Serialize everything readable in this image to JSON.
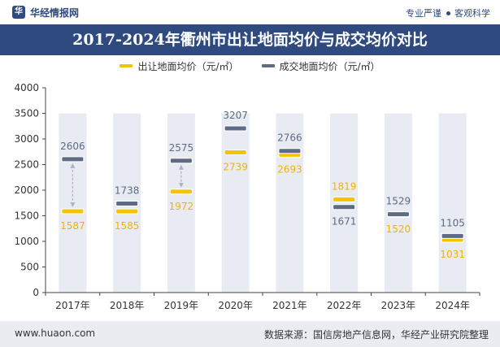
{
  "header": {
    "brand": "华经情报网",
    "brand_logo_char": "华",
    "tagline_left": "专业严谨",
    "tagline_right": "客观科学"
  },
  "footer": {
    "website": "www.huaon.com",
    "source": "数据来源：国信房地产信息网，华经产业研究院整理"
  },
  "colors": {
    "navy": "#2e4a7e",
    "gold": "#f5c400",
    "gray_marker": "#5d6b85",
    "column_bg": "#e8ecf2",
    "label_gold": "#f0b400",
    "label_gray": "#5d6b85"
  },
  "chart_data": {
    "type": "bar",
    "title": "2017-2024年衢州市出让地面均价与成交均价对比",
    "categories": [
      "2017年",
      "2018年",
      "2019年",
      "2020年",
      "2021年",
      "2022年",
      "2023年",
      "2024年"
    ],
    "series": [
      {
        "name": "出让地面均价（元/㎡）",
        "values": [
          1587,
          1585,
          1972,
          2739,
          2693,
          1819,
          1520,
          1031
        ]
      },
      {
        "name": "成交地面均价（元/㎡）",
        "values": [
          2606,
          1738,
          2575,
          3207,
          2766,
          1671,
          1529,
          1105
        ]
      }
    ],
    "ylim": [
      0,
      4000
    ],
    "yticks": [
      0,
      500,
      1000,
      1500,
      2000,
      2500,
      3000,
      3500,
      4000
    ],
    "grid": false,
    "legend_position": "top"
  }
}
